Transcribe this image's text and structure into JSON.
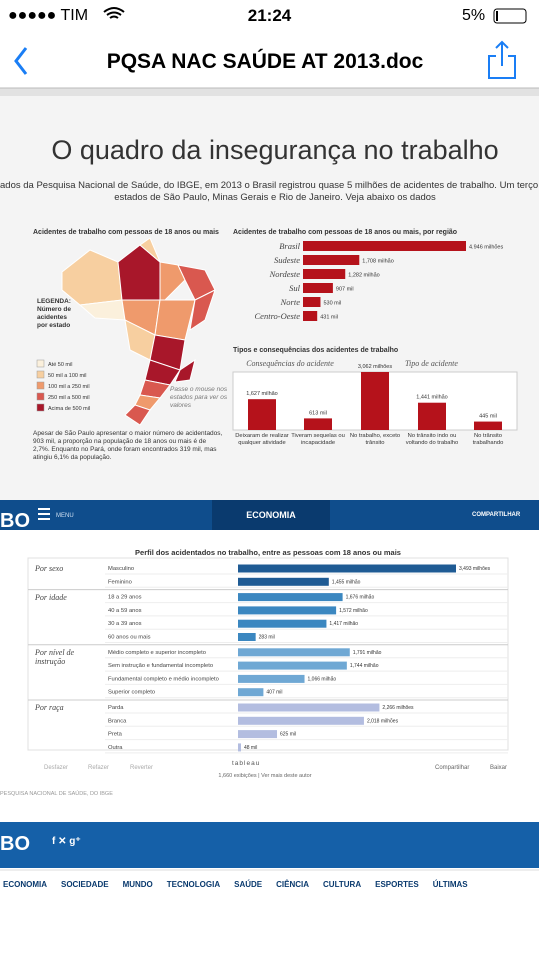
{
  "status_bar": {
    "carrier": "●●●●● TIM",
    "time": "21:24",
    "battery": "5%"
  },
  "nav": {
    "title": "PQSA NAC SAÚDE AT 2013.doc"
  },
  "article": {
    "title": "O quadro da insegurança no trabalho",
    "intro": "ados da Pesquisa Nacional de Saúde, do IBGE, em 2013 o Brasil registrou quase 5 milhões de acidentes de trabalho. Um terço deles se co",
    "intro2": "estados de São Paulo, Minas Gerais e Rio de Janeiro. Veja abaixo os dados"
  },
  "map_panel": {
    "title": "Acidentes de trabalho com pessoas de 18 anos ou mais",
    "legend_title": "LEGENDA: Número de acidentes por estado",
    "legend": [
      {
        "label": "Até 50 mil",
        "color": "#fbf0dc"
      },
      {
        "label": "50 mil a 100 mil",
        "color": "#f7cfa0"
      },
      {
        "label": "100 mil a 250 mil",
        "color": "#ef9a6c"
      },
      {
        "label": "250 mil a 500 mil",
        "color": "#d9584f"
      },
      {
        "label": "Acima de 500 mil",
        "color": "#a8172a"
      }
    ],
    "hint": "Passe o mouse nos estados para ver os valores",
    "note": "Apesar de São Paulo apresentar o maior número de acidentados, 903 mil, a proporção na população de 18 anos ou mais é de 2,7%. Enquanto no Pará, onde foram encontrados 319 mil, mas atingiu 6,1% da população."
  },
  "region_chart": {
    "title": "Acidentes de trabalho com pessoas de 18 anos ou mais, por região",
    "color": "#b5121b",
    "categories": [
      "Brasil",
      "Sudeste",
      "Nordeste",
      "Sul",
      "Norte",
      "Centro-Oeste"
    ],
    "values": [
      4946000,
      1708000,
      1282000,
      907000,
      530000,
      431000
    ],
    "value_labels": [
      "4.946 milhões",
      "1,708 milhão",
      "1,282 milhão",
      "907 mil",
      "530 mil",
      "431 mil"
    ]
  },
  "types_chart": {
    "title": "Tipos e consequências dos acidentes de trabalho",
    "color": "#b5121b",
    "groups": [
      {
        "name": "Consequências do acidente",
        "categories": [
          "Deixaram de realizar qualquer atividade",
          "Tiveram sequelas ou incapacidade"
        ],
        "values": [
          1627000,
          613000
        ],
        "value_labels": [
          "1,627 milhão",
          "613 mil"
        ]
      },
      {
        "name": "Tipo de acidente",
        "categories": [
          "No trabalho, exceto trânsito",
          "No trânsito indo ou voltando do trabalho",
          "No trânsito trabalhando"
        ],
        "values": [
          3062000,
          1441000,
          445000
        ],
        "value_labels": [
          "3,062 milhões",
          "1,441 milhão",
          "445 mil"
        ]
      }
    ]
  },
  "globo_bar": {
    "logo": "BO",
    "menu": "MENU",
    "section": "ECONOMIA",
    "share": "COMPARTILHAR"
  },
  "profile_chart": {
    "title": "Perfil dos acidentados no trabalho, entre as pessoas com 18 anos ou mais",
    "groups": [
      {
        "name": "Por sexo",
        "color": "#1f5b94",
        "categories": [
          "Masculino",
          "Feminino"
        ],
        "values": [
          3493000,
          1455000
        ],
        "value_labels": [
          "3,493 milhões",
          "1,455 milhão"
        ]
      },
      {
        "name": "Por idade",
        "color": "#3b87c0",
        "categories": [
          "18 a 29 anos",
          "40 a 59 anos",
          "30 a 39 anos",
          "60 anos ou mais"
        ],
        "values": [
          1676000,
          1572000,
          1417000,
          283000
        ],
        "value_labels": [
          "1,676 milhão",
          "1,572 milhão",
          "1,417 milhão",
          "283 mil"
        ]
      },
      {
        "name": "Por nível de instrução",
        "color": "#6fa8d4",
        "categories": [
          "Médio completo e superior incompleto",
          "Sem instrução e fundamental incompleto",
          "Fundamental completo e médio incompleto",
          "Superior completo"
        ],
        "values": [
          1791000,
          1744000,
          1066000,
          407000
        ],
        "value_labels": [
          "1,791 milhão",
          "1,744 milhão",
          "1,066 milhão",
          "407 mil"
        ]
      },
      {
        "name": "Por raça",
        "color": "#b3bde0",
        "categories": [
          "Parda",
          "Branca",
          "Preta",
          "Outra"
        ],
        "values": [
          2266000,
          2018000,
          625000,
          48000
        ],
        "value_labels": [
          "2,266 milhões",
          "2,018 milhões",
          "625 mil",
          "48 mil"
        ]
      }
    ]
  },
  "tableau_bar": {
    "undo": "Desfazer",
    "redo": "Refazer",
    "revert": "Reverter",
    "brand": "tableau",
    "views": "1,660 exibições | Ver mais deste autor",
    "share": "Compartilhar",
    "download": "Baixar"
  },
  "source": "PESQUISA NACIONAL DE SAÚDE, DO IBGE",
  "footer": {
    "logo": "BO",
    "links": [
      "ECONOMIA",
      "SOCIEDADE",
      "MUNDO",
      "TECNOLOGIA",
      "SAÚDE",
      "CIÊNCIA",
      "CULTURA",
      "ESPORTES",
      "ÚLTIMAS"
    ]
  }
}
